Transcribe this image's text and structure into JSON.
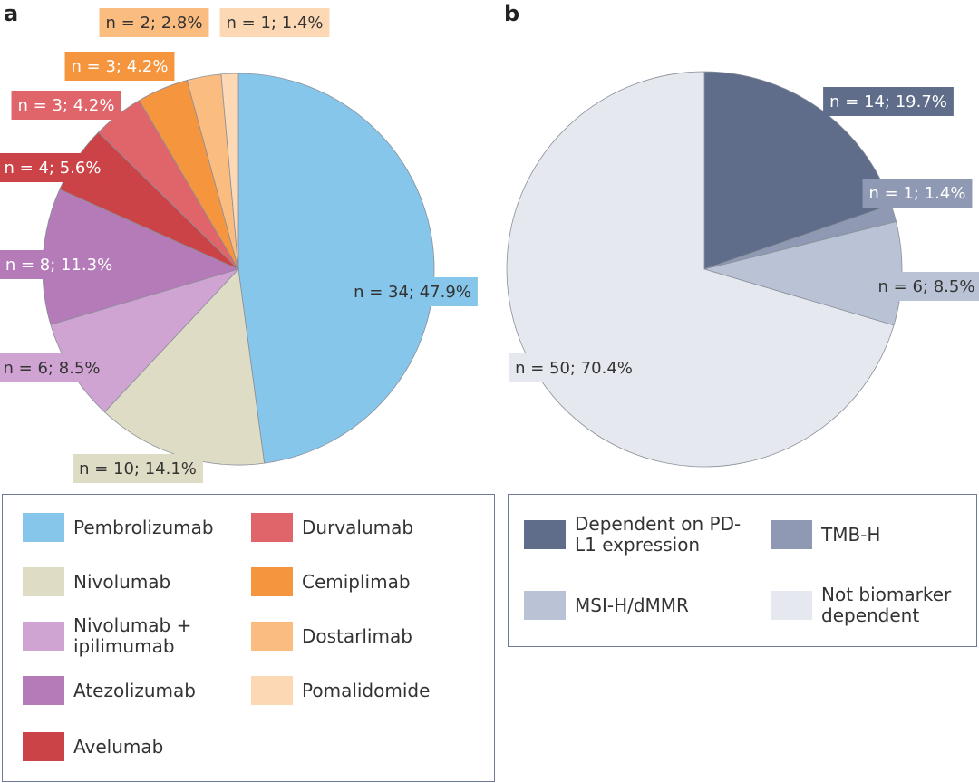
{
  "chart_data": [
    {
      "type": "pie",
      "panel": "a",
      "categories": [
        "Pembrolizumab",
        "Nivolumab",
        "Nivolumab + ipilimumab",
        "Atezolizumab",
        "Avelumab",
        "Durvalumab",
        "Cemiplimab",
        "Dostarlimab",
        "Pomalidomide"
      ],
      "values": [
        34,
        10,
        6,
        8,
        4,
        3,
        3,
        2,
        1
      ],
      "value_labels": [
        "n = 34; 47.9%",
        "n = 10; 14.1%",
        "n = 6; 8.5%",
        "n = 8; 11.3%",
        "n = 4; 5.6%",
        "n = 3; 4.2%",
        "n = 3; 4.2%",
        "n = 2; 2.8%",
        "n = 1; 1.4%"
      ],
      "colors": [
        "#87c6eb",
        "#dedcc4",
        "#d0a4d2",
        "#b57bb9",
        "#cc4347",
        "#e0656a",
        "#f5963f",
        "#fbbc80",
        "#fcd8b4"
      ]
    },
    {
      "type": "pie",
      "panel": "b",
      "categories": [
        "Dependent on PD-L1 expression",
        "TMB-H",
        "MSI-H/dMMR",
        "Not biomarker dependent"
      ],
      "values": [
        14,
        1,
        6,
        50
      ],
      "value_labels": [
        "n = 14; 19.7%",
        "n = 1; 1.4%",
        "n = 6; 8.5%",
        "n = 50; 70.4%"
      ],
      "colors": [
        "#5f6d8b",
        "#8f99b3",
        "#b9c3d5",
        "#e5e8ee"
      ]
    }
  ]
}
